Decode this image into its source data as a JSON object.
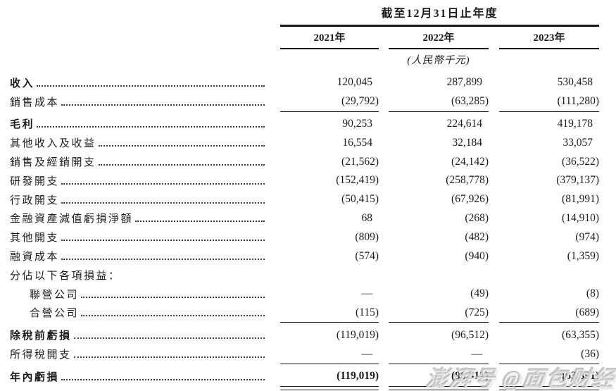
{
  "table": {
    "title": "截至12月31日止年度",
    "unit_note": "(人民幣千元)",
    "columns": [
      "2021年",
      "2022年",
      "2023年"
    ],
    "rows": [
      {
        "label": "收入",
        "label_bold": true,
        "values_bold": false,
        "indent": false,
        "leader": true,
        "values": [
          "120,045",
          "287,899",
          "530,458"
        ],
        "rule_below": false,
        "double_rule_below": false
      },
      {
        "label": "銷售成本",
        "label_bold": false,
        "values_bold": false,
        "indent": false,
        "leader": true,
        "values": [
          "(29,792)",
          "(63,285)",
          "(111,280)"
        ],
        "rule_below": true,
        "double_rule_below": false
      },
      {
        "label": "毛利",
        "label_bold": true,
        "values_bold": false,
        "indent": false,
        "leader": true,
        "values": [
          "90,253",
          "224,614",
          "419,178"
        ],
        "rule_below": false,
        "double_rule_below": false
      },
      {
        "label": "其他收入及收益",
        "label_bold": false,
        "values_bold": false,
        "indent": false,
        "leader": true,
        "values": [
          "16,554",
          "32,184",
          "33,057"
        ],
        "rule_below": false,
        "double_rule_below": false
      },
      {
        "label": "銷售及經銷開支",
        "label_bold": false,
        "values_bold": false,
        "indent": false,
        "leader": true,
        "values": [
          "(21,562)",
          "(24,142)",
          "(36,522)"
        ],
        "rule_below": false,
        "double_rule_below": false
      },
      {
        "label": "研發開支",
        "label_bold": false,
        "values_bold": false,
        "indent": false,
        "leader": true,
        "values": [
          "(152,419)",
          "(258,778)",
          "(379,137)"
        ],
        "rule_below": false,
        "double_rule_below": false
      },
      {
        "label": "行政開支",
        "label_bold": false,
        "values_bold": false,
        "indent": false,
        "leader": true,
        "values": [
          "(50,415)",
          "(67,926)",
          "(81,991)"
        ],
        "rule_below": false,
        "double_rule_below": false
      },
      {
        "label": "金融資產減值虧損淨額",
        "label_bold": false,
        "values_bold": false,
        "indent": false,
        "leader": true,
        "values": [
          "68",
          "(268)",
          "(14,910)"
        ],
        "rule_below": false,
        "double_rule_below": false
      },
      {
        "label": "其他開支",
        "label_bold": false,
        "values_bold": false,
        "indent": false,
        "leader": true,
        "values": [
          "(809)",
          "(482)",
          "(974)"
        ],
        "rule_below": false,
        "double_rule_below": false
      },
      {
        "label": "融資成本",
        "label_bold": false,
        "values_bold": false,
        "indent": false,
        "leader": true,
        "values": [
          "(574)",
          "(940)",
          "(1,359)"
        ],
        "rule_below": false,
        "double_rule_below": false
      },
      {
        "label": "分佔以下各項損益：",
        "label_bold": false,
        "values_bold": false,
        "indent": false,
        "leader": false,
        "values": [
          "",
          "",
          ""
        ],
        "rule_below": false,
        "double_rule_below": false
      },
      {
        "label": "聯營公司",
        "label_bold": false,
        "values_bold": false,
        "indent": true,
        "leader": true,
        "values": [
          "—",
          "(49)",
          "(8)"
        ],
        "rule_below": false,
        "double_rule_below": false
      },
      {
        "label": "合營公司",
        "label_bold": false,
        "values_bold": false,
        "indent": true,
        "leader": true,
        "values": [
          "(115)",
          "(725)",
          "(689)"
        ],
        "rule_below": true,
        "double_rule_below": false
      },
      {
        "label": "除稅前虧損",
        "label_bold": true,
        "values_bold": false,
        "indent": false,
        "leader": true,
        "values": [
          "(119,019)",
          "(96,512)",
          "(63,355)"
        ],
        "rule_below": false,
        "double_rule_below": false
      },
      {
        "label": "所得稅開支",
        "label_bold": false,
        "values_bold": false,
        "indent": false,
        "leader": true,
        "values": [
          "—",
          "—",
          "(36)"
        ],
        "rule_below": true,
        "double_rule_below": false
      },
      {
        "label": "年內虧損",
        "label_bold": true,
        "values_bold": true,
        "indent": false,
        "leader": true,
        "values": [
          "(119,019)",
          "(96,512)",
          "(63,391)"
        ],
        "rule_below": false,
        "double_rule_below": true
      }
    ]
  },
  "watermark": "澎湃号 @面包财经"
}
